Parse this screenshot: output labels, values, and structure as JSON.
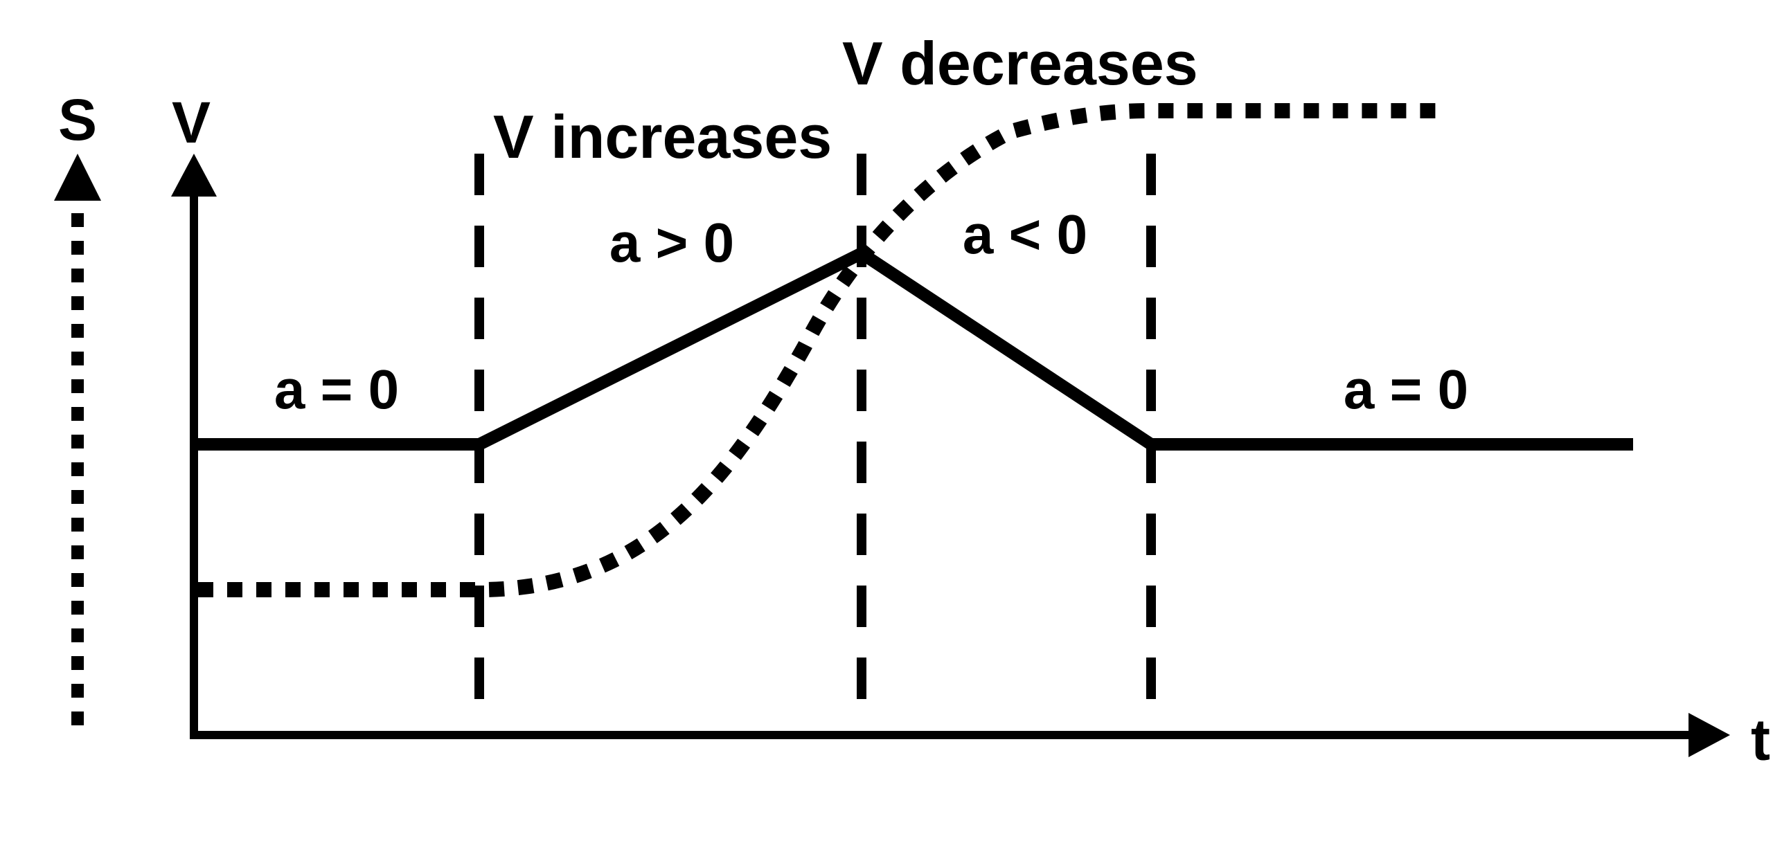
{
  "axes": {
    "s_label": "S",
    "v_label": "V",
    "t_label": "t"
  },
  "annotations": {
    "v_increases": "V increases",
    "v_decreases": "V decreases",
    "accel_positive": "a > 0",
    "accel_negative": "a < 0",
    "accel_zero_left": "a = 0",
    "accel_zero_right": "a = 0"
  },
  "curves": {
    "velocity": {
      "style": "solid",
      "color": "#000000"
    },
    "position": {
      "style": "dotted",
      "color": "#000000"
    },
    "phase_boundaries": {
      "style": "dashed",
      "color": "#000000"
    }
  }
}
